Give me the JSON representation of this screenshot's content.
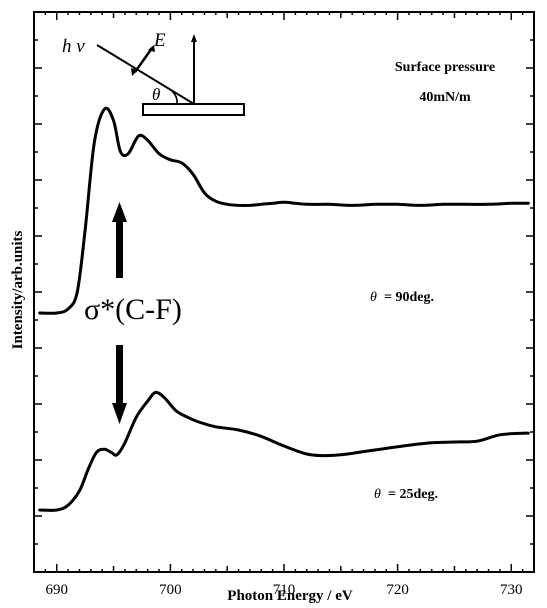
{
  "chart_data": {
    "type": "line",
    "xlabel": "Photon Energy / eV",
    "ylabel": "Intensity/arb.units",
    "xlim": [
      688,
      732
    ],
    "x_ticks": [
      690,
      700,
      710,
      720,
      730
    ],
    "y_ticks_labeled": false,
    "legend": "none",
    "grid": false,
    "annotations": {
      "surface_pressure_line1": "Surface pressure",
      "surface_pressure_line2": "40mN/m",
      "sigma_label": "σ*(C-F)",
      "theta_sym": "θ",
      "deg90_value": "= 90deg.",
      "deg25_value": "= 25deg.",
      "inset_hv": "h ν",
      "inset_E": "E",
      "inset_theta": "θ"
    },
    "series": [
      {
        "label_ref": "θ = 90deg.",
        "x": [
          688.5,
          690,
          691,
          691.8,
          692.5,
          693.3,
          694.2,
          695.0,
          695.6,
          696.3,
          697.2,
          698.0,
          699.0,
          700.0,
          701.0,
          702.0,
          703.0,
          704.0,
          705.0,
          706.0,
          707.0,
          708.0,
          709.0,
          710.0,
          711.0,
          712.0,
          714.0,
          716.0,
          718.0,
          720.0,
          722.0,
          724.0,
          726.0,
          728.0,
          730.0,
          731.5
        ],
        "y": [
          0.0,
          0.0,
          0.02,
          0.1,
          0.4,
          0.82,
          0.985,
          0.93,
          0.78,
          0.77,
          0.855,
          0.835,
          0.77,
          0.74,
          0.725,
          0.67,
          0.58,
          0.54,
          0.525,
          0.52,
          0.52,
          0.525,
          0.53,
          0.535,
          0.53,
          0.525,
          0.525,
          0.52,
          0.525,
          0.525,
          0.52,
          0.525,
          0.525,
          0.525,
          0.53,
          0.53
        ]
      },
      {
        "label_ref": "θ = 25deg.",
        "x": [
          688.5,
          690,
          691,
          692,
          692.8,
          693.5,
          694.2,
          694.8,
          695.3,
          696.0,
          697.0,
          698.0,
          698.7,
          699.5,
          700.5,
          701.5,
          702.5,
          704.0,
          706.0,
          708.0,
          710.0,
          712.0,
          713.5,
          715.0,
          717.0,
          719.0,
          721.0,
          723.0,
          725.0,
          727.0,
          729.0,
          731.0,
          731.5
        ],
        "y": [
          0.0,
          0.0,
          0.03,
          0.12,
          0.26,
          0.36,
          0.38,
          0.36,
          0.345,
          0.42,
          0.58,
          0.68,
          0.735,
          0.7,
          0.62,
          0.58,
          0.55,
          0.52,
          0.5,
          0.46,
          0.4,
          0.35,
          0.34,
          0.345,
          0.365,
          0.385,
          0.405,
          0.42,
          0.425,
          0.43,
          0.47,
          0.48,
          0.48
        ]
      }
    ]
  }
}
